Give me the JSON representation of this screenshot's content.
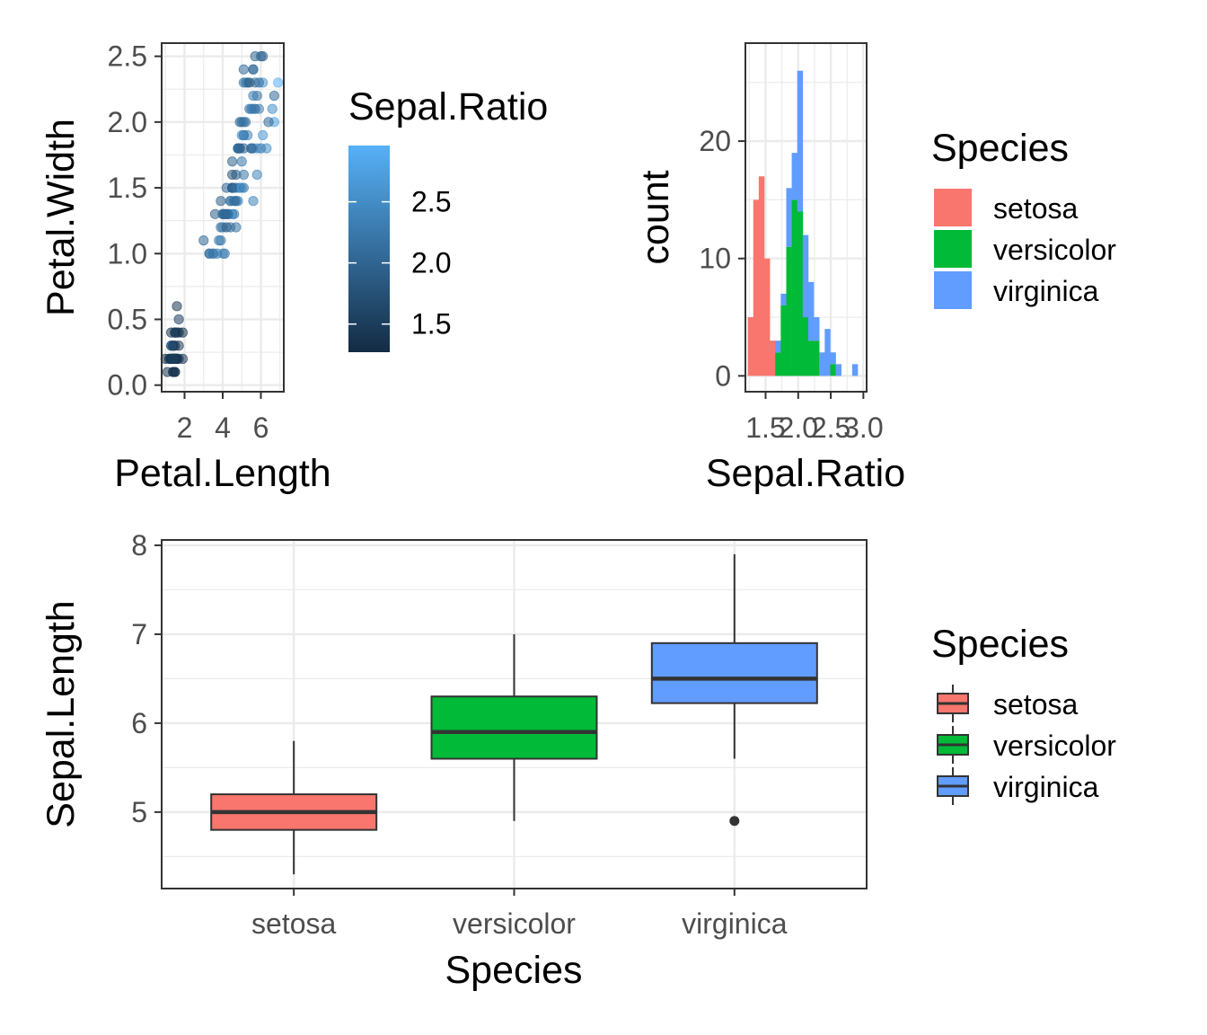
{
  "chart_data": [
    {
      "type": "scatter",
      "xlabel": "Petal.Length",
      "ylabel": "Petal.Width",
      "xlim": [
        0.8,
        7.2
      ],
      "ylim": [
        -0.05,
        2.6
      ],
      "x_ticks": [
        2,
        4,
        6
      ],
      "y_ticks": [
        0.0,
        0.5,
        1.0,
        1.5,
        2.0,
        2.5
      ],
      "x_tick_labels": [
        "2",
        "4",
        "6"
      ],
      "y_tick_labels": [
        "0.0",
        "0.5",
        "1.0",
        "1.5",
        "2.0",
        "2.5"
      ],
      "grid": true,
      "color_by": "Sepal.Ratio",
      "color_low": "#132B43",
      "color_high": "#56B1F7",
      "color_range": [
        1.27,
        2.96
      ],
      "legend": {
        "title": "Sepal.Ratio",
        "placement": "right",
        "breaks": [
          2.5,
          2.0,
          1.5
        ],
        "labels": [
          "2.5",
          "2.0",
          "1.5"
        ]
      },
      "points": [
        [
          1.4,
          0.2,
          1.43
        ],
        [
          1.4,
          0.2,
          1.63
        ],
        [
          1.3,
          0.2,
          1.47
        ],
        [
          1.5,
          0.2,
          1.48
        ],
        [
          1.4,
          0.2,
          1.39
        ],
        [
          1.7,
          0.4,
          1.38
        ],
        [
          1.4,
          0.3,
          1.35
        ],
        [
          1.5,
          0.2,
          1.47
        ],
        [
          1.4,
          0.2,
          1.52
        ],
        [
          1.5,
          0.1,
          1.58
        ],
        [
          1.5,
          0.2,
          1.46
        ],
        [
          1.6,
          0.2,
          1.41
        ],
        [
          1.4,
          0.1,
          1.6
        ],
        [
          1.1,
          0.1,
          1.43
        ],
        [
          1.2,
          0.2,
          1.45
        ],
        [
          1.5,
          0.4,
          1.29
        ],
        [
          1.3,
          0.4,
          1.38
        ],
        [
          1.4,
          0.3,
          1.46
        ],
        [
          1.7,
          0.3,
          1.5
        ],
        [
          1.5,
          0.3,
          1.34
        ],
        [
          1.7,
          0.2,
          1.59
        ],
        [
          1.5,
          0.4,
          1.38
        ],
        [
          1.0,
          0.2,
          1.3
        ],
        [
          1.7,
          0.5,
          1.55
        ],
        [
          1.9,
          0.2,
          1.41
        ],
        [
          1.6,
          0.2,
          1.67
        ],
        [
          1.6,
          0.4,
          1.47
        ],
        [
          1.5,
          0.2,
          1.49
        ],
        [
          1.4,
          0.2,
          1.53
        ],
        [
          1.6,
          0.2,
          1.47
        ],
        [
          1.6,
          0.2,
          1.55
        ],
        [
          1.5,
          0.4,
          1.59
        ],
        [
          1.5,
          0.1,
          1.27
        ],
        [
          1.4,
          0.2,
          1.31
        ],
        [
          1.5,
          0.2,
          1.58
        ],
        [
          1.2,
          0.2,
          1.56
        ],
        [
          1.3,
          0.2,
          1.57
        ],
        [
          1.4,
          0.1,
          1.36
        ],
        [
          1.3,
          0.2,
          1.47
        ],
        [
          1.5,
          0.2,
          1.5
        ],
        [
          1.3,
          0.3,
          1.43
        ],
        [
          1.3,
          0.3,
          1.96
        ],
        [
          1.3,
          0.2,
          1.38
        ],
        [
          1.6,
          0.6,
          1.43
        ],
        [
          1.9,
          0.4,
          1.34
        ],
        [
          1.4,
          0.3,
          1.6
        ],
        [
          1.6,
          0.2,
          1.34
        ],
        [
          1.4,
          0.2,
          1.44
        ],
        [
          1.5,
          0.2,
          1.43
        ],
        [
          1.4,
          0.2,
          1.52
        ],
        [
          4.7,
          1.4,
          2.19
        ],
        [
          4.5,
          1.5,
          2.0
        ],
        [
          4.9,
          1.5,
          2.23
        ],
        [
          4.0,
          1.3,
          2.39
        ],
        [
          4.6,
          1.5,
          2.32
        ],
        [
          4.5,
          1.3,
          2.04
        ],
        [
          4.7,
          1.6,
          1.91
        ],
        [
          3.3,
          1.0,
          2.04
        ],
        [
          4.6,
          1.3,
          2.28
        ],
        [
          3.9,
          1.4,
          1.93
        ],
        [
          3.5,
          1.0,
          2.5
        ],
        [
          4.2,
          1.5,
          1.97
        ],
        [
          4.0,
          1.0,
          2.73
        ],
        [
          4.7,
          1.4,
          2.1
        ],
        [
          3.6,
          1.3,
          1.93
        ],
        [
          4.4,
          1.4,
          2.16
        ],
        [
          4.5,
          1.5,
          1.87
        ],
        [
          4.1,
          1.0,
          2.15
        ],
        [
          4.5,
          1.5,
          2.82
        ],
        [
          3.9,
          1.1,
          2.24
        ],
        [
          4.8,
          1.8,
          1.84
        ],
        [
          4.0,
          1.3,
          2.18
        ],
        [
          4.9,
          1.5,
          2.52
        ],
        [
          4.7,
          1.2,
          2.18
        ],
        [
          4.3,
          1.3,
          2.21
        ],
        [
          4.4,
          1.4,
          2.2
        ],
        [
          4.8,
          1.4,
          2.43
        ],
        [
          5.0,
          1.7,
          2.23
        ],
        [
          4.5,
          1.5,
          2.07
        ],
        [
          3.5,
          1.0,
          2.19
        ],
        [
          3.8,
          1.1,
          2.29
        ],
        [
          3.7,
          1.0,
          2.29
        ],
        [
          3.9,
          1.2,
          2.15
        ],
        [
          5.1,
          1.6,
          2.22
        ],
        [
          4.5,
          1.5,
          1.8
        ],
        [
          4.5,
          1.6,
          1.76
        ],
        [
          4.7,
          1.5,
          2.16
        ],
        [
          4.4,
          1.3,
          2.74
        ],
        [
          4.1,
          1.3,
          1.87
        ],
        [
          4.0,
          1.3,
          2.2
        ],
        [
          4.4,
          1.2,
          2.12
        ],
        [
          4.6,
          1.4,
          2.03
        ],
        [
          4.0,
          1.2,
          2.23
        ],
        [
          3.3,
          1.0,
          2.17
        ],
        [
          4.2,
          1.3,
          2.04
        ],
        [
          4.2,
          1.2,
          1.9
        ],
        [
          4.2,
          1.3,
          1.97
        ],
        [
          4.3,
          1.3,
          2.14
        ],
        [
          3.0,
          1.1,
          2.04
        ],
        [
          4.1,
          1.3,
          2.04
        ],
        [
          6.0,
          2.5,
          1.91
        ],
        [
          5.1,
          1.9,
          2.15
        ],
        [
          5.9,
          2.1,
          2.37
        ],
        [
          5.6,
          1.8,
          2.17
        ],
        [
          5.8,
          2.2,
          2.17
        ],
        [
          6.6,
          2.1,
          2.53
        ],
        [
          4.5,
          1.7,
          1.96
        ],
        [
          6.3,
          1.8,
          2.52
        ],
        [
          5.8,
          1.8,
          2.68
        ],
        [
          6.1,
          2.5,
          2.0
        ],
        [
          5.1,
          2.0,
          2.0
        ],
        [
          5.3,
          1.9,
          2.37
        ],
        [
          5.5,
          2.1,
          2.27
        ],
        [
          5.0,
          2.0,
          2.28
        ],
        [
          5.1,
          2.4,
          2.07
        ],
        [
          5.3,
          2.3,
          2.0
        ],
        [
          5.5,
          1.8,
          2.17
        ],
        [
          6.7,
          2.2,
          2.03
        ],
        [
          6.9,
          2.3,
          2.96
        ],
        [
          5.0,
          1.5,
          2.73
        ],
        [
          5.7,
          2.3,
          2.16
        ],
        [
          4.9,
          2.0,
          2.0
        ],
        [
          6.7,
          2.0,
          2.75
        ],
        [
          4.9,
          1.8,
          2.33
        ],
        [
          5.7,
          2.1,
          2.03
        ],
        [
          6.0,
          1.8,
          2.25
        ],
        [
          4.8,
          1.8,
          2.21
        ],
        [
          4.9,
          1.8,
          2.03
        ],
        [
          5.6,
          2.1,
          2.29
        ],
        [
          5.8,
          1.6,
          2.4
        ],
        [
          6.1,
          1.9,
          2.64
        ],
        [
          6.4,
          2.0,
          2.08
        ],
        [
          5.6,
          2.2,
          2.29
        ],
        [
          5.1,
          1.5,
          2.25
        ],
        [
          5.6,
          1.4,
          2.35
        ],
        [
          6.1,
          2.3,
          2.57
        ],
        [
          5.6,
          2.4,
          1.85
        ],
        [
          5.5,
          1.8,
          2.06
        ],
        [
          4.8,
          1.8,
          2.0
        ],
        [
          5.4,
          2.1,
          2.23
        ],
        [
          5.6,
          2.4,
          2.16
        ],
        [
          5.1,
          2.3,
          2.23
        ],
        [
          5.1,
          1.9,
          2.15
        ],
        [
          5.9,
          2.3,
          2.13
        ],
        [
          5.7,
          2.5,
          2.03
        ],
        [
          5.2,
          2.3,
          2.23
        ],
        [
          5.0,
          1.9,
          2.52
        ],
        [
          5.2,
          2.0,
          2.17
        ],
        [
          5.4,
          2.3,
          1.82
        ],
        [
          5.1,
          1.8,
          1.97
        ]
      ]
    },
    {
      "type": "bar",
      "xlabel": "Sepal.Ratio",
      "ylabel": "count",
      "xlim": [
        1.19,
        3.05
      ],
      "ylim": [
        -1.35,
        28.35
      ],
      "x_ticks": [
        1.5,
        2.0,
        2.5,
        3.0
      ],
      "x_tick_labels": [
        "1.5",
        "2.0",
        "2.5",
        "3.0"
      ],
      "y_ticks": [
        0,
        10,
        20
      ],
      "y_tick_labels": [
        "0",
        "10",
        "20"
      ],
      "grid": true,
      "stacked": true,
      "bin_width": 0.0843,
      "bin_start": 1.2264,
      "legend": {
        "title": "Species",
        "placement": "right"
      },
      "series": [
        {
          "name": "setosa",
          "color": "#F8766D",
          "values": [
            5,
            15,
            17,
            10,
            3,
            0,
            0,
            0,
            0,
            0,
            0,
            0,
            0,
            0,
            0,
            0,
            0,
            0,
            0,
            0
          ]
        },
        {
          "name": "versicolor",
          "color": "#00BA38",
          "values": [
            0,
            0,
            0,
            0,
            0,
            2,
            6,
            11,
            15,
            14,
            5,
            3,
            3,
            0,
            0,
            1,
            0,
            0,
            0,
            0
          ]
        },
        {
          "name": "virginica",
          "color": "#619CFF",
          "values": [
            0,
            0,
            0,
            0,
            0,
            1,
            1,
            5,
            4,
            12,
            7,
            5,
            2,
            2,
            4,
            1,
            1,
            0,
            0,
            1
          ]
        }
      ]
    },
    {
      "type": "boxplot",
      "xlabel": "Species",
      "ylabel": "Sepal.Length",
      "ylim": [
        4.14,
        8.06
      ],
      "categories": [
        "setosa",
        "versicolor",
        "virginica"
      ],
      "y_ticks": [
        5,
        6,
        7,
        8
      ],
      "y_tick_labels": [
        "5",
        "6",
        "7",
        "8"
      ],
      "grid": true,
      "legend": {
        "title": "Species",
        "placement": "right"
      },
      "series": [
        {
          "name": "setosa",
          "color": "#F8766D",
          "min": 4.3,
          "q1": 4.8,
          "median": 5.0,
          "q3": 5.2,
          "max": 5.8,
          "outliers": []
        },
        {
          "name": "versicolor",
          "color": "#00BA38",
          "min": 4.9,
          "q1": 5.6,
          "median": 5.9,
          "q3": 6.3,
          "max": 7.0,
          "outliers": []
        },
        {
          "name": "virginica",
          "color": "#619CFF",
          "min": 5.6,
          "q1": 6.225,
          "median": 6.5,
          "q3": 6.9,
          "max": 7.9,
          "outliers": [
            4.9
          ]
        }
      ]
    }
  ]
}
